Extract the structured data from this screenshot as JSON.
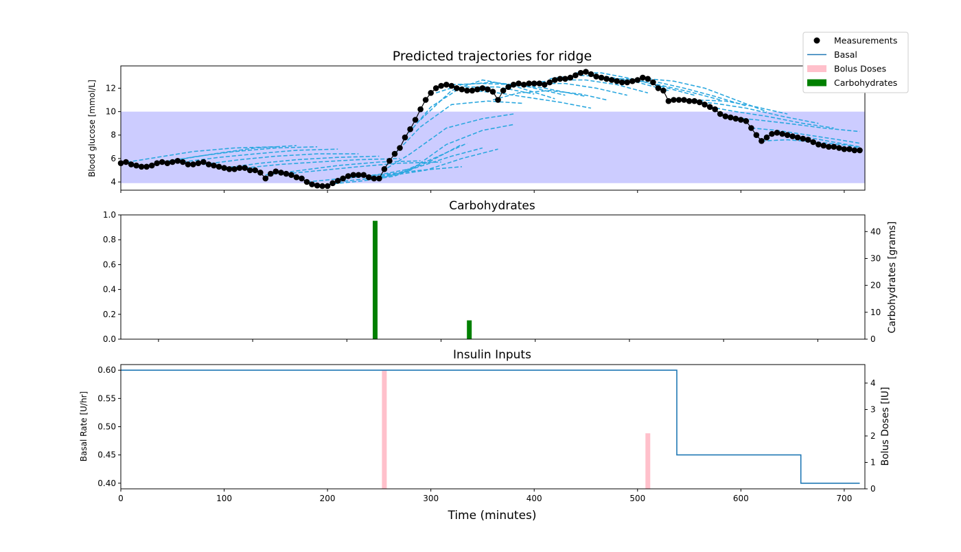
{
  "chart_data": [
    {
      "type": "line",
      "title": "Predicted trajectories for ridge",
      "xlabel": "",
      "ylabel": "Blood glucose [mmol/L]",
      "xlim": [
        0,
        720
      ],
      "ylim": [
        3.3,
        13.9
      ],
      "yticks": [
        4,
        6,
        8,
        10,
        12
      ],
      "target_range": [
        3.9,
        10.0
      ],
      "colors": {
        "measurements": "#000000",
        "prediction": "#2aa7df",
        "target_band": "#ccccff"
      },
      "measurements": {
        "name": "Measurements",
        "x": [
          0,
          5,
          10,
          15,
          20,
          25,
          30,
          35,
          40,
          45,
          50,
          55,
          60,
          65,
          70,
          75,
          80,
          85,
          90,
          95,
          100,
          105,
          110,
          115,
          120,
          125,
          130,
          135,
          140,
          145,
          150,
          155,
          160,
          165,
          170,
          175,
          180,
          185,
          190,
          195,
          200,
          205,
          210,
          215,
          220,
          225,
          230,
          235,
          240,
          245,
          250,
          255,
          260,
          265,
          270,
          275,
          280,
          285,
          290,
          295,
          300,
          305,
          310,
          315,
          320,
          325,
          330,
          335,
          340,
          345,
          350,
          355,
          360,
          365,
          370,
          375,
          380,
          385,
          390,
          395,
          400,
          405,
          410,
          415,
          420,
          425,
          430,
          435,
          440,
          445,
          450,
          455,
          460,
          465,
          470,
          475,
          480,
          485,
          490,
          495,
          500,
          505,
          510,
          515,
          520,
          525,
          530,
          535,
          540,
          545,
          550,
          555,
          560,
          565,
          570,
          575,
          580,
          585,
          590,
          595,
          600,
          605,
          610,
          615,
          620,
          625,
          630,
          635,
          640,
          645,
          650,
          655,
          660,
          665,
          670,
          675,
          680,
          685,
          690,
          695,
          700,
          705,
          710,
          715
        ],
        "y": [
          5.6,
          5.7,
          5.5,
          5.4,
          5.3,
          5.3,
          5.4,
          5.6,
          5.7,
          5.6,
          5.7,
          5.8,
          5.7,
          5.5,
          5.5,
          5.6,
          5.7,
          5.5,
          5.4,
          5.3,
          5.2,
          5.1,
          5.1,
          5.2,
          5.2,
          5.0,
          5.0,
          4.8,
          4.3,
          4.7,
          4.9,
          4.8,
          4.7,
          4.6,
          4.4,
          4.3,
          4.0,
          3.8,
          3.7,
          3.65,
          3.65,
          3.9,
          4.1,
          4.3,
          4.5,
          4.6,
          4.6,
          4.6,
          4.4,
          4.3,
          4.3,
          5.1,
          5.8,
          6.4,
          6.9,
          7.8,
          8.5,
          9.3,
          10.2,
          11.0,
          11.6,
          12.0,
          12.2,
          12.3,
          12.2,
          12.0,
          11.9,
          11.8,
          11.8,
          11.9,
          12.0,
          11.9,
          11.7,
          11.0,
          11.8,
          12.1,
          12.3,
          12.4,
          12.3,
          12.4,
          12.4,
          12.4,
          12.3,
          12.5,
          12.7,
          12.8,
          12.8,
          12.9,
          13.1,
          13.3,
          13.4,
          13.2,
          13.0,
          12.9,
          12.8,
          12.7,
          12.6,
          12.5,
          12.5,
          12.6,
          12.7,
          12.9,
          12.8,
          12.5,
          12.0,
          11.8,
          10.9,
          11.0,
          11.0,
          11.0,
          10.9,
          10.9,
          10.8,
          10.6,
          10.4,
          10.2,
          9.8,
          9.6,
          9.5,
          9.4,
          9.3,
          9.2,
          8.6,
          8.0,
          7.5,
          7.8,
          8.1,
          8.2,
          8.1,
          8.0,
          7.9,
          7.8,
          7.7,
          7.6,
          7.4,
          7.2,
          7.1,
          7.0,
          7.0,
          6.9,
          6.8,
          6.8,
          6.7,
          6.7
        ]
      },
      "predictions": [
        {
          "x": [
            0,
            35,
            70,
            110,
            150
          ],
          "y": [
            5.6,
            6.1,
            6.6,
            6.9,
            7.0
          ]
        },
        {
          "x": [
            20,
            55,
            90,
            130,
            170
          ],
          "y": [
            5.3,
            5.9,
            6.4,
            6.9,
            7.1
          ]
        },
        {
          "x": [
            40,
            75,
            110,
            150,
            190
          ],
          "y": [
            5.7,
            6.2,
            6.6,
            6.9,
            7.0
          ]
        },
        {
          "x": [
            60,
            95,
            130,
            170,
            210
          ],
          "y": [
            5.7,
            6.1,
            6.4,
            6.7,
            6.8
          ]
        },
        {
          "x": [
            80,
            115,
            150,
            190,
            230
          ],
          "y": [
            5.5,
            5.9,
            6.2,
            6.4,
            6.4
          ]
        },
        {
          "x": [
            100,
            135,
            170,
            210,
            250
          ],
          "y": [
            5.2,
            5.6,
            5.9,
            6.1,
            6.2
          ]
        },
        {
          "x": [
            120,
            155,
            190,
            230,
            270
          ],
          "y": [
            5.2,
            5.5,
            5.7,
            5.9,
            6.0
          ]
        },
        {
          "x": [
            140,
            175,
            210,
            250,
            290
          ],
          "y": [
            4.6,
            5.0,
            5.4,
            5.7,
            5.8
          ]
        },
        {
          "x": [
            160,
            195,
            230,
            270,
            310
          ],
          "y": [
            4.7,
            5.0,
            5.3,
            5.6,
            5.7
          ]
        },
        {
          "x": [
            180,
            215,
            250,
            290,
            330
          ],
          "y": [
            4.0,
            4.3,
            4.6,
            5.0,
            5.3
          ]
        },
        {
          "x": [
            200,
            235,
            265,
            300,
            330
          ],
          "y": [
            3.8,
            4.1,
            4.5,
            5.8,
            7.2
          ]
        },
        {
          "x": [
            210,
            240,
            270,
            305,
            335
          ],
          "y": [
            4.0,
            4.3,
            4.8,
            6.1,
            7.3
          ]
        },
        {
          "x": [
            225,
            255,
            285,
            320,
            350
          ],
          "y": [
            4.4,
            4.7,
            5.2,
            6.2,
            6.9
          ]
        },
        {
          "x": [
            240,
            265,
            295,
            330,
            365
          ],
          "y": [
            4.3,
            4.6,
            5.0,
            6.0,
            6.8
          ]
        },
        {
          "x": [
            250,
            280,
            315,
            350,
            380
          ],
          "y": [
            4.3,
            5.0,
            7.2,
            8.4,
            8.9
          ]
        },
        {
          "x": [
            258,
            280,
            315,
            350,
            380
          ],
          "y": [
            5.2,
            6.4,
            8.6,
            9.4,
            9.8
          ]
        },
        {
          "x": [
            265,
            290,
            320,
            355,
            390
          ],
          "y": [
            6.4,
            8.7,
            10.6,
            10.9,
            10.7
          ]
        },
        {
          "x": [
            275,
            300,
            330,
            365,
            400
          ],
          "y": [
            7.8,
            10.4,
            12.1,
            12.1,
            11.5
          ]
        },
        {
          "x": [
            290,
            320,
            350,
            380,
            420
          ],
          "y": [
            9.3,
            11.8,
            12.7,
            12.2,
            11.1
          ]
        },
        {
          "x": [
            305,
            330,
            360,
            390,
            430
          ],
          "y": [
            11.6,
            12.3,
            12.5,
            12.2,
            11.4
          ]
        },
        {
          "x": [
            320,
            350,
            380,
            410,
            450
          ],
          "y": [
            12.3,
            12.4,
            12.3,
            12.0,
            11.3
          ]
        },
        {
          "x": [
            340,
            365,
            395,
            425,
            455
          ],
          "y": [
            11.8,
            11.6,
            11.2,
            10.8,
            10.3
          ]
        },
        {
          "x": [
            360,
            385,
            415,
            445,
            470
          ],
          "y": [
            11.0,
            11.6,
            11.8,
            11.5,
            11.0
          ]
        },
        {
          "x": [
            375,
            400,
            430,
            460,
            490
          ],
          "y": [
            12.1,
            12.4,
            12.4,
            12.0,
            11.4
          ]
        },
        {
          "x": [
            395,
            420,
            450,
            480,
            510
          ],
          "y": [
            12.4,
            12.7,
            12.7,
            12.3,
            11.6
          ]
        },
        {
          "x": [
            415,
            440,
            470,
            500,
            530
          ],
          "y": [
            12.8,
            13.1,
            13.0,
            12.5,
            11.8
          ]
        },
        {
          "x": [
            440,
            465,
            495,
            525,
            555
          ],
          "y": [
            13.3,
            13.3,
            12.8,
            12.1,
            11.4
          ]
        },
        {
          "x": [
            465,
            490,
            520,
            550,
            580
          ],
          "y": [
            12.8,
            12.8,
            12.3,
            11.7,
            11.0
          ]
        },
        {
          "x": [
            490,
            515,
            545,
            575,
            605
          ],
          "y": [
            12.6,
            12.6,
            12.0,
            11.3,
            10.5
          ]
        },
        {
          "x": [
            510,
            535,
            565,
            595,
            625
          ],
          "y": [
            12.8,
            12.6,
            12.0,
            11.0,
            10.0
          ]
        },
        {
          "x": [
            530,
            555,
            585,
            615,
            645
          ],
          "y": [
            11.0,
            11.0,
            10.9,
            10.4,
            9.8
          ]
        },
        {
          "x": [
            550,
            575,
            605,
            640,
            675
          ],
          "y": [
            10.9,
            10.7,
            10.3,
            9.6,
            9.0
          ]
        },
        {
          "x": [
            570,
            595,
            625,
            660,
            690
          ],
          "y": [
            10.4,
            10.0,
            9.6,
            9.0,
            8.6
          ]
        },
        {
          "x": [
            590,
            615,
            645,
            680,
            715
          ],
          "y": [
            9.5,
            9.3,
            9.0,
            8.6,
            8.3
          ]
        },
        {
          "x": [
            610,
            635,
            665,
            695,
            715
          ],
          "y": [
            8.6,
            8.4,
            8.0,
            7.6,
            7.3
          ]
        },
        {
          "x": [
            620,
            645,
            675,
            705,
            715
          ],
          "y": [
            7.5,
            7.6,
            7.4,
            7.1,
            6.9
          ]
        },
        {
          "x": [
            640,
            665,
            690,
            715
          ],
          "y": [
            8.0,
            7.8,
            7.4,
            7.0
          ]
        }
      ]
    },
    {
      "type": "bar",
      "title": "Carbohydrates",
      "xlim": [
        0,
        790
      ],
      "ylim": [
        0,
        1.0
      ],
      "yticks": [
        0.0,
        0.2,
        0.4,
        0.6,
        0.8,
        1.0
      ],
      "ytick_labels": [
        "0.0",
        "0.2",
        "0.4",
        "0.6",
        "0.8",
        "1.0"
      ],
      "y2label": "Carbohydrates [grams]",
      "y2lim": [
        0,
        46.2
      ],
      "y2ticks": [
        0,
        10,
        20,
        30,
        40
      ],
      "series": [
        {
          "name": "Carbohydrates",
          "color": "#008000",
          "x": [
            270,
            370
          ],
          "values": [
            44,
            7
          ]
        }
      ]
    },
    {
      "type": "line",
      "title": "Insulin Inputs",
      "xlabel": "Time (minutes)",
      "ylabel": "Basal Rate [U/hr]",
      "y2label": "Bolus Doses [IU]",
      "xlim": [
        0,
        720
      ],
      "xticks": [
        0,
        100,
        200,
        300,
        400,
        500,
        600,
        700
      ],
      "ylim": [
        0.39,
        0.61
      ],
      "yticks": [
        0.4,
        0.45,
        0.5,
        0.55,
        0.6
      ],
      "ytick_labels": [
        "0.40",
        "0.45",
        "0.50",
        "0.55",
        "0.60"
      ],
      "y2lim": [
        0,
        4.7
      ],
      "y2ticks": [
        0,
        1,
        2,
        3,
        4
      ],
      "basal": {
        "name": "Basal",
        "color": "#1f77b4",
        "x": [
          0,
          538,
          538,
          658,
          658,
          715
        ],
        "y": [
          0.6,
          0.6,
          0.45,
          0.45,
          0.4,
          0.4
        ]
      },
      "bolus": {
        "name": "Bolus Doses",
        "color": "#ffc0cb",
        "x": [
          255,
          510
        ],
        "values": [
          4.5,
          2.1
        ]
      }
    }
  ],
  "legend": {
    "placement": "top-right",
    "items": [
      {
        "label": "Measurements",
        "kind": "dot",
        "color": "#000000"
      },
      {
        "label": "Basal",
        "kind": "line",
        "color": "#1f77b4"
      },
      {
        "label": "Bolus Doses",
        "kind": "patch",
        "color": "#ffc0cb"
      },
      {
        "label": "Carbohydrates",
        "kind": "patch",
        "color": "#008000"
      }
    ]
  }
}
